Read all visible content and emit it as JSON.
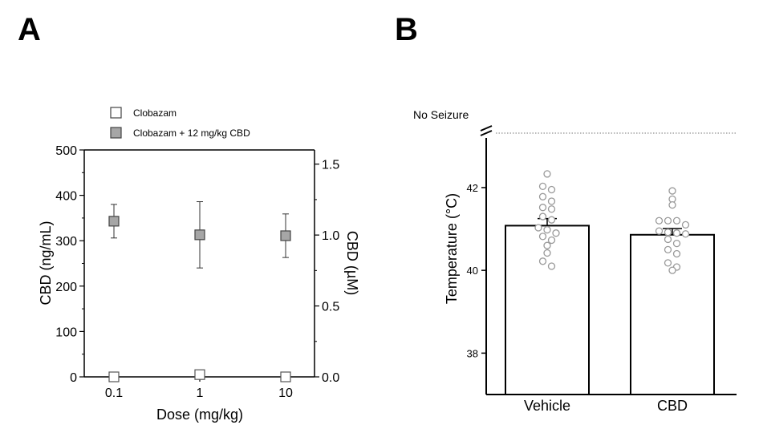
{
  "panel_a_label": "A",
  "panel_b_label": "B",
  "chart_data": [
    {
      "type": "scatter",
      "panel": "A",
      "xlabel": "Dose (mg/kg)",
      "ylabel": "CBD (ng/mL)",
      "y2label": "CBD (µM)",
      "categories": [
        "0.1",
        "1",
        "10"
      ],
      "ylim": [
        0,
        500
      ],
      "y2lim": [
        0,
        1.6
      ],
      "yticks": [
        "0",
        "100",
        "200",
        "300",
        "400",
        "500"
      ],
      "y2ticks": [
        "0.0",
        "0.5",
        "1.0",
        "1.5"
      ],
      "legend_position": "top",
      "series": [
        {
          "name": "Clobazam",
          "fill": "#ffffff",
          "values": [
            0,
            5,
            0
          ],
          "err": [
            0,
            0,
            0
          ]
        },
        {
          "name": "Clobazam + 12 mg/kg CBD",
          "fill": "#a6a6a6",
          "values": [
            343,
            313,
            311
          ],
          "err": [
            37,
            73,
            48
          ]
        }
      ]
    },
    {
      "type": "bar",
      "panel": "B",
      "ylabel": "Temperature  (°C)",
      "categories": [
        "Vehicle",
        "CBD"
      ],
      "values": [
        41.08,
        40.86
      ],
      "sem": [
        0.17,
        0.15
      ],
      "ylim": [
        37,
        43.2
      ],
      "yticks": [
        "38",
        "40",
        "42"
      ],
      "annotation": "No Seizure",
      "points": [
        [
          42.33,
          42.03,
          41.95,
          41.78,
          41.67,
          41.52,
          41.48,
          41.3,
          41.22,
          41.03,
          40.98,
          40.9,
          40.82,
          40.73,
          40.6,
          40.42,
          40.22,
          40.1
        ],
        [
          41.92,
          41.72,
          41.58,
          41.2,
          41.2,
          41.2,
          41.1,
          40.95,
          40.92,
          40.9,
          40.88,
          40.75,
          40.65,
          40.5,
          40.4,
          40.18,
          40.08,
          40.0
        ]
      ]
    }
  ]
}
